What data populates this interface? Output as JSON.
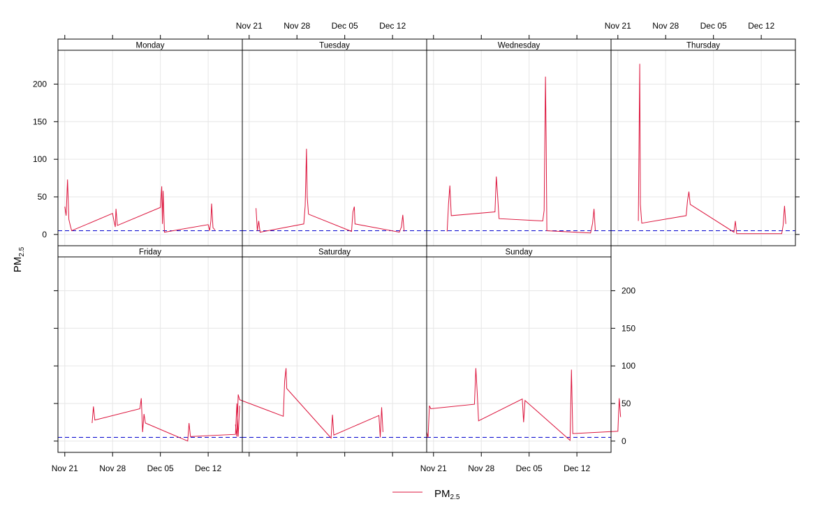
{
  "chart_data": {
    "type": "line",
    "ylabel_main": "PM",
    "ylabel_sub": "2.5",
    "legend": {
      "label_main": "PM",
      "label_sub": "2.5",
      "color": "#dc143c",
      "placement": "bottom-center"
    },
    "line_color": "#dc143c",
    "reference_line": {
      "y": 5,
      "color": "#0000cd",
      "style": "dashed"
    },
    "x_ticks": [
      "Nov 21",
      "Nov 28",
      "Dec 05",
      "Dec 12"
    ],
    "x_range": [
      "Nov 20",
      "Dec 17"
    ],
    "y_ticks": [
      0,
      50,
      100,
      150,
      200
    ],
    "ylim": [
      -15,
      245
    ],
    "grid": true,
    "panels": [
      {
        "name": "Monday",
        "points": [
          [
            "Nov 21",
            37
          ],
          [
            "Nov 21.2",
            25
          ],
          [
            "Nov 21.4",
            73
          ],
          [
            "Nov 21.6",
            20
          ],
          [
            "Nov 21.8",
            12
          ],
          [
            "Nov 22",
            5
          ],
          [
            "Nov 28",
            28
          ],
          [
            "Nov 28.2",
            18
          ],
          [
            "Nov 28.4",
            10
          ],
          [
            "Nov 28.5",
            34
          ],
          [
            "Nov 28.7",
            12
          ],
          [
            "Dec 05",
            36
          ],
          [
            "Dec 05.2",
            64
          ],
          [
            "Dec 05.3",
            14
          ],
          [
            "Dec 05.4",
            58
          ],
          [
            "Dec 05.6",
            3
          ],
          [
            "Dec 12",
            13
          ],
          [
            "Dec 12.2",
            5
          ],
          [
            "Dec 12.4",
            18
          ],
          [
            "Dec 12.5",
            41
          ],
          [
            "Dec 12.7",
            9
          ],
          [
            "Dec 13",
            6
          ]
        ]
      },
      {
        "name": "Tuesday",
        "points": [
          [
            "Nov 22",
            35
          ],
          [
            "Nov 22.2",
            5
          ],
          [
            "Nov 22.4",
            18
          ],
          [
            "Nov 22.6",
            3
          ],
          [
            "Nov 29",
            14
          ],
          [
            "Nov 29.2",
            38
          ],
          [
            "Nov 29.4",
            114
          ],
          [
            "Nov 29.5",
            50
          ],
          [
            "Nov 29.7",
            27
          ],
          [
            "Dec 06",
            4
          ],
          [
            "Dec 06.2",
            30
          ],
          [
            "Dec 06.4",
            37
          ],
          [
            "Dec 06.5",
            14
          ],
          [
            "Dec 13",
            3
          ],
          [
            "Dec 13.3",
            10
          ],
          [
            "Dec 13.5",
            26
          ],
          [
            "Dec 13.7",
            4
          ]
        ]
      },
      {
        "name": "Wednesday",
        "points": [
          [
            "Nov 23",
            4
          ],
          [
            "Nov 23.2",
            41
          ],
          [
            "Nov 23.4",
            65
          ],
          [
            "Nov 23.6",
            25
          ],
          [
            "Nov 30",
            30
          ],
          [
            "Nov 30.2",
            77
          ],
          [
            "Nov 30.4",
            50
          ],
          [
            "Nov 30.6",
            21
          ],
          [
            "Dec 07",
            18
          ],
          [
            "Dec 07.2",
            32
          ],
          [
            "Dec 07.4",
            210
          ],
          [
            "Dec 07.5",
            128
          ],
          [
            "Dec 07.6",
            5
          ],
          [
            "Dec 14",
            2
          ],
          [
            "Dec 14.3",
            15
          ],
          [
            "Dec 14.5",
            34
          ],
          [
            "Dec 14.7",
            5
          ]
        ]
      },
      {
        "name": "Thursday",
        "points": [
          [
            "Nov 24",
            18
          ],
          [
            "Nov 24.2",
            227
          ],
          [
            "Nov 24.3",
            40
          ],
          [
            "Nov 24.5",
            15
          ],
          [
            "Dec 01",
            25
          ],
          [
            "Dec 01.2",
            45
          ],
          [
            "Dec 01.4",
            57
          ],
          [
            "Dec 01.6",
            40
          ],
          [
            "Dec 08",
            3
          ],
          [
            "Dec 08.2",
            18
          ],
          [
            "Dec 08.4",
            1
          ],
          [
            "Dec 15",
            1
          ],
          [
            "Dec 15.2",
            12
          ],
          [
            "Dec 15.4",
            38
          ],
          [
            "Dec 15.6",
            14
          ]
        ]
      },
      {
        "name": "Friday",
        "points": [
          [
            "Nov 25",
            24
          ],
          [
            "Nov 25.2",
            46
          ],
          [
            "Nov 25.4",
            28
          ],
          [
            "Dec 02",
            43
          ],
          [
            "Dec 02.2",
            57
          ],
          [
            "Dec 02.4",
            12
          ],
          [
            "Dec 02.6",
            36
          ],
          [
            "Dec 02.8",
            24
          ],
          [
            "Dec 09",
            0
          ],
          [
            "Dec 09.2",
            24
          ],
          [
            "Dec 09.4",
            6
          ],
          [
            "Dec 16",
            9
          ],
          [
            "Dec 16.2",
            50
          ],
          [
            "Dec 16.4",
            6
          ],
          [
            "Dec 16.6",
            47
          ]
        ]
      },
      {
        "name": "Saturday",
        "points": [
          [
            "Nov 19",
            22
          ],
          [
            "Nov 19.2",
            6
          ],
          [
            "Nov 19.4",
            62
          ],
          [
            "Nov 19.6",
            55
          ],
          [
            "Nov 26",
            33
          ],
          [
            "Nov 26.2",
            80
          ],
          [
            "Nov 26.4",
            97
          ],
          [
            "Nov 26.5",
            70
          ],
          [
            "Dec 03",
            4
          ],
          [
            "Dec 03.2",
            35
          ],
          [
            "Dec 03.4",
            8
          ],
          [
            "Dec 10",
            34
          ],
          [
            "Dec 10.2",
            5
          ],
          [
            "Dec 10.4",
            45
          ],
          [
            "Dec 10.6",
            12
          ]
        ]
      },
      {
        "name": "Sunday",
        "points": [
          [
            "Nov 20",
            12
          ],
          [
            "Nov 20.2",
            5
          ],
          [
            "Nov 20.4",
            47
          ],
          [
            "Nov 20.6",
            43
          ],
          [
            "Nov 27",
            49
          ],
          [
            "Nov 27.2",
            97
          ],
          [
            "Nov 27.4",
            64
          ],
          [
            "Nov 27.6",
            27
          ],
          [
            "Dec 04",
            56
          ],
          [
            "Dec 04.2",
            25
          ],
          [
            "Dec 04.4",
            54
          ],
          [
            "Dec 11",
            1
          ],
          [
            "Dec 11.2",
            95
          ],
          [
            "Dec 11.4",
            10
          ],
          [
            "Dec 18",
            13
          ],
          [
            "Dec 18.2",
            57
          ],
          [
            "Dec 18.4",
            32
          ]
        ]
      }
    ]
  }
}
